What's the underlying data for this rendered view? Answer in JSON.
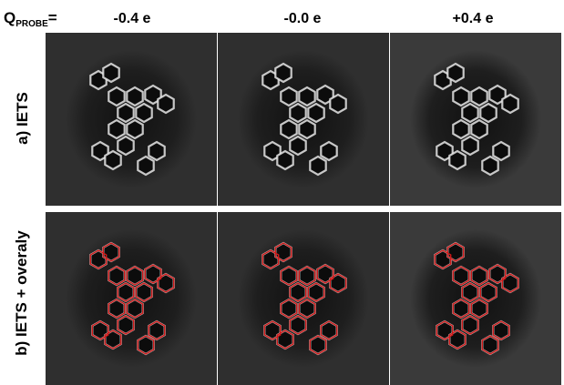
{
  "header": {
    "q_main": "Q",
    "q_sub": "PROBE",
    "q_eq": "="
  },
  "columns": [
    {
      "label": "-0.4 e"
    },
    {
      "label": "-0.0 e"
    },
    {
      "label": "+0.4 e"
    }
  ],
  "rows": [
    {
      "label": "a) IETS"
    },
    {
      "label": "b) IETS + overaly"
    }
  ],
  "colors": {
    "background": "#2b2b2b",
    "bond_bright": "#e8e8e8",
    "overlay": "#d01818"
  }
}
